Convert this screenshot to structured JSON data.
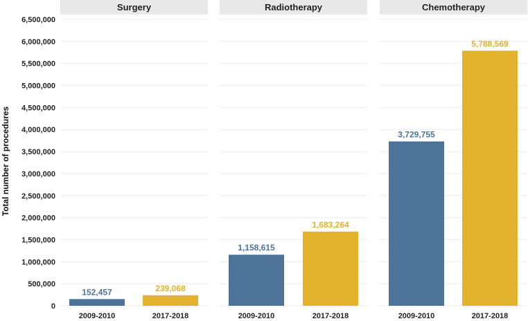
{
  "chart_data": {
    "type": "bar",
    "ylabel": "Total number of procedures",
    "ylim": [
      0,
      6500000
    ],
    "yticks": [
      0,
      500000,
      1000000,
      1500000,
      2000000,
      2500000,
      3000000,
      3500000,
      4000000,
      4500000,
      5000000,
      5500000,
      6000000,
      6500000
    ],
    "ytick_labels": [
      "0",
      "500,000",
      "1,000,000",
      "1,500,000",
      "2,000,000",
      "2,500,000",
      "3,000,000",
      "3,500,000",
      "4,000,000",
      "4,500,000",
      "5,000,000",
      "5,500,000",
      "6,000,000",
      "6,500,000"
    ],
    "categories": [
      "2009-2010",
      "2017-2018"
    ],
    "colors": [
      "#4e7399",
      "#e2b22c"
    ],
    "grid": true,
    "panels": [
      {
        "title": "Surgery",
        "values": [
          152457,
          239068
        ],
        "labels": [
          "152,457",
          "239,068"
        ]
      },
      {
        "title": "Radiotherapy",
        "values": [
          1158615,
          1683264
        ],
        "labels": [
          "1,158,615",
          "1,683,264"
        ]
      },
      {
        "title": "Chemotherapy",
        "values": [
          3729755,
          5788569
        ],
        "labels": [
          "3,729,755",
          "5,788,569"
        ]
      }
    ]
  }
}
